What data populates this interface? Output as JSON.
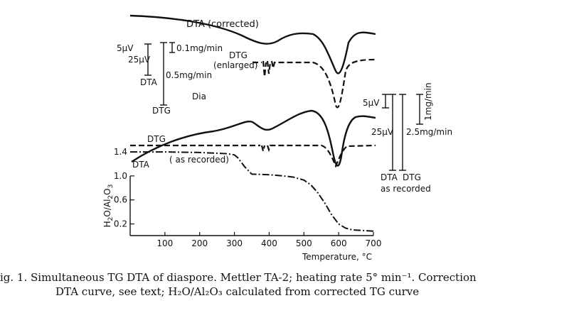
{
  "chart_data": {
    "type": "line",
    "title": "",
    "xlabel": "Temperature, °C",
    "ylabel": "H2O/Al2O3",
    "xlim": [
      0,
      700
    ],
    "ylim": [
      0,
      1.6
    ],
    "x_ticks": [
      "100",
      "200",
      "300",
      "400",
      "500",
      "600",
      "700"
    ],
    "y_ticks": [
      "1.4",
      "1.0",
      "0.6",
      "0.2"
    ],
    "tg_series": {
      "x": [
        0,
        100,
        200,
        280,
        300,
        310,
        330,
        350,
        400,
        440,
        470,
        500,
        520,
        540,
        560,
        580,
        600,
        620,
        640,
        700
      ],
      "y": [
        1.4,
        1.4,
        1.39,
        1.37,
        1.35,
        1.3,
        1.15,
        1.03,
        1.02,
        1.0,
        0.98,
        0.93,
        0.85,
        0.72,
        0.55,
        0.35,
        0.2,
        0.13,
        0.1,
        0.08
      ]
    },
    "labels": {
      "dta_corrected": "DTA (corrected)",
      "dtg_enlarged_line1": "DTG",
      "dtg_enlarged_line2": "(enlarged)",
      "dta_scale": "5µV",
      "dta_scale_25": "25µV",
      "dta_label": "DTA",
      "dtg_scale_01": "0.1mg/min",
      "dtg_scale_05": "0.5mg/min",
      "dtg_label": "DTG",
      "dia": "Dia",
      "dtg_recorded": "DTG",
      "as_recorded_curve": "( as recorded)",
      "dta_recorded": "DTA",
      "right_5uv": "5µV",
      "right_1mg": "1mg/min",
      "right_25uv": "25µV",
      "right_25mg": "2.5mg/min",
      "right_dta": "DTA",
      "right_dtg": "DTG",
      "right_as_recorded": "as recorded"
    }
  },
  "caption": {
    "line1": "ig. 1. Simultaneous TG DTA of diaspore. Mettler TA-2; heating rate 5° min⁻¹. Correction",
    "line2": "DTA curve, see text; H₂O/Al₂O₃ calculated from corrected TG curve"
  }
}
